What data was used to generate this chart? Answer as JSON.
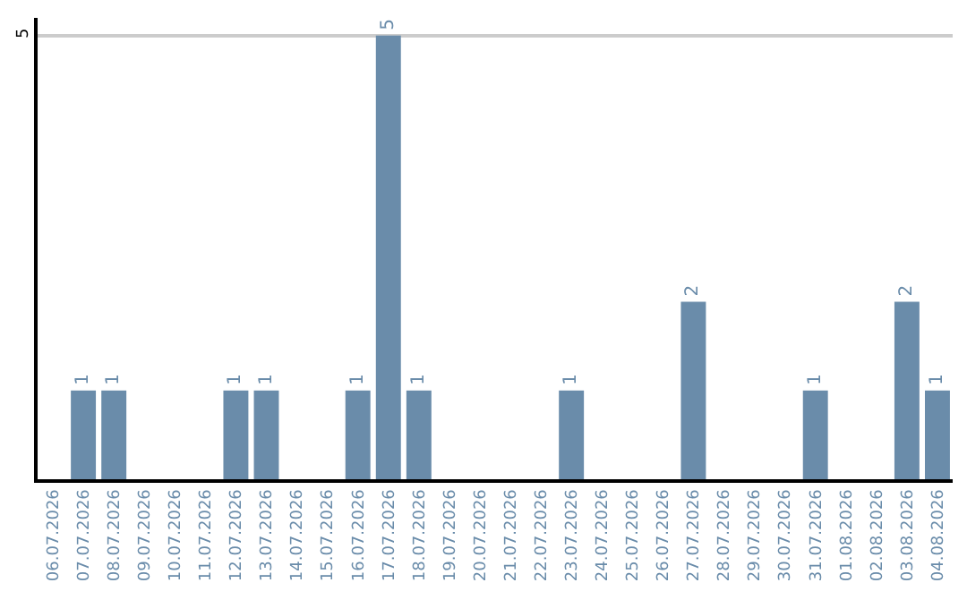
{
  "chart_data": {
    "type": "bar",
    "categories": [
      "06.07.2026",
      "07.07.2026",
      "08.07.2026",
      "09.07.2026",
      "10.07.2026",
      "11.07.2026",
      "12.07.2026",
      "13.07.2026",
      "14.07.2026",
      "15.07.2026",
      "16.07.2026",
      "17.07.2026",
      "18.07.2026",
      "19.07.2026",
      "20.07.2026",
      "21.07.2026",
      "22.07.2026",
      "23.07.2026",
      "24.07.2026",
      "25.07.2026",
      "26.07.2026",
      "27.07.2026",
      "28.07.2026",
      "29.07.2026",
      "30.07.2026",
      "31.07.2026",
      "01.08.2026",
      "02.08.2026",
      "03.08.2026",
      "04.08.2026"
    ],
    "values": [
      0,
      1,
      1,
      0,
      0,
      0,
      1,
      1,
      0,
      0,
      1,
      5,
      1,
      0,
      0,
      0,
      0,
      1,
      0,
      0,
      0,
      2,
      0,
      0,
      0,
      1,
      0,
      0,
      2,
      1
    ],
    "value_labels": [
      null,
      "1",
      "1",
      null,
      null,
      null,
      "1",
      "1",
      null,
      null,
      "1",
      "5",
      "1",
      null,
      null,
      null,
      null,
      "1",
      null,
      null,
      null,
      "2",
      null,
      null,
      null,
      "1",
      null,
      null,
      "2",
      "1"
    ],
    "color": "#6a8caa",
    "ylim": [
      0,
      5.2
    ],
    "yticks": [
      5
    ],
    "grid": "y"
  }
}
